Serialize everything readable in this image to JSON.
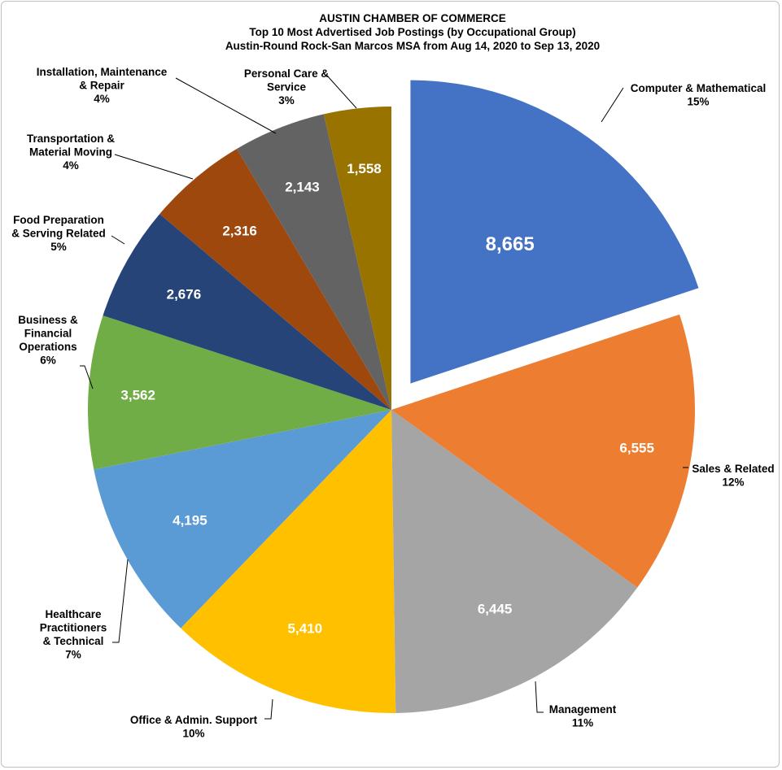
{
  "chart_data": {
    "type": "pie",
    "title": "AUSTIN CHAMBER OF COMMERCE",
    "subtitle": [
      "Top 10 Most Advertised Job Postings (by Occupational Group)",
      "Austin-Round Rock-San Marcos MSA from Aug 14, 2020 to Sep 13, 2020"
    ],
    "exploded": "Computer & Mathematical",
    "slices": [
      {
        "category": "Computer & Mathematical",
        "label_lines": [
          "Computer & Mathematical"
        ],
        "value": 8665,
        "value_text": "8,665",
        "percent": "15%",
        "color": "#4472c4"
      },
      {
        "category": "Sales & Related",
        "label_lines": [
          "Sales & Related"
        ],
        "value": 6555,
        "value_text": "6,555",
        "percent": "12%",
        "color": "#ed7d31"
      },
      {
        "category": "Management",
        "label_lines": [
          "Management"
        ],
        "value": 6445,
        "value_text": "6,445",
        "percent": "11%",
        "color": "#a5a5a5"
      },
      {
        "category": "Office & Admin. Support",
        "label_lines": [
          "Office & Admin.  Support"
        ],
        "value": 5410,
        "value_text": "5,410",
        "percent": "10%",
        "color": "#ffc000"
      },
      {
        "category": "Healthcare Practitioners & Technical",
        "label_lines": [
          "Healthcare",
          "Practitioners",
          "& Technical"
        ],
        "value": 4195,
        "value_text": "4,195",
        "percent": "7%",
        "color": "#5b9bd5"
      },
      {
        "category": "Business & Financial Operations",
        "label_lines": [
          "Business &",
          "Financial",
          "Operations"
        ],
        "value": 3562,
        "value_text": "3,562",
        "percent": "6%",
        "color": "#70ad47"
      },
      {
        "category": "Food Preparation & Serving Related",
        "label_lines": [
          "Food Preparation",
          "& Serving Related"
        ],
        "value": 2676,
        "value_text": "2,676",
        "percent": "5%",
        "color": "#264478"
      },
      {
        "category": "Transportation & Material Moving",
        "label_lines": [
          "Transportation &",
          "Material Moving"
        ],
        "value": 2316,
        "value_text": "2,316",
        "percent": "4%",
        "color": "#9e480e"
      },
      {
        "category": "Installation, Maintenance & Repair",
        "label_lines": [
          "Installation, Maintenance",
          "& Repair"
        ],
        "value": 2143,
        "value_text": "2,143",
        "percent": "4%",
        "color": "#636363"
      },
      {
        "category": "Personal Care & Service",
        "label_lines": [
          "Personal Care &",
          "Service"
        ],
        "value": 1558,
        "value_text": "1,558",
        "percent": "3%",
        "color": "#997300"
      }
    ]
  }
}
